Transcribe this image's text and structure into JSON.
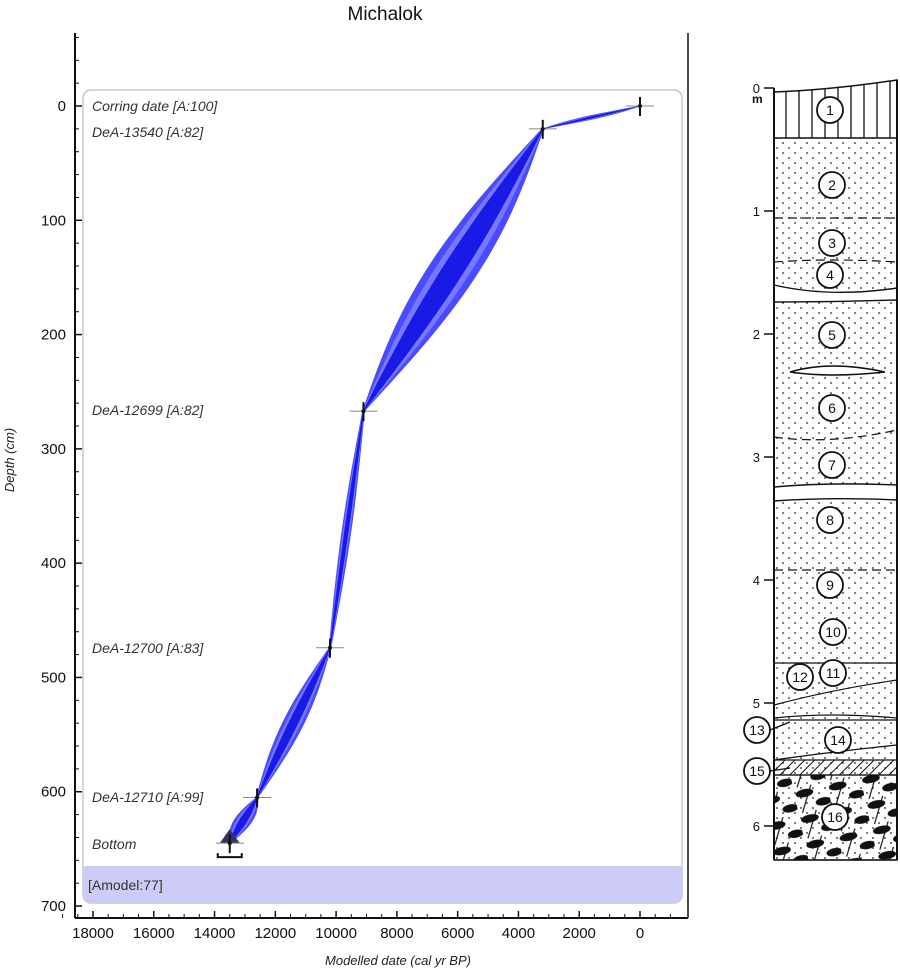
{
  "chart_data": {
    "type": "line",
    "title": "Michalok",
    "xlabel": "Modelled date (cal yr BP)",
    "ylabel": "Depth (cm)",
    "xlim": [
      19500,
      -1600
    ],
    "ylim": [
      700,
      -60
    ],
    "x_reversed": true,
    "y_reversed": true,
    "grid": false,
    "x_ticks": [
      "18000",
      "16000",
      "14000",
      "12000",
      "10000",
      "8000",
      "6000",
      "4000",
      "2000",
      "0"
    ],
    "y_ticks": [
      "0",
      "100",
      "200",
      "300",
      "400",
      "500",
      "600",
      "700"
    ],
    "band_color": "#1a1aff",
    "points": [
      {
        "label": "Corring date [A:100]",
        "age": 0,
        "depth": 0
      },
      {
        "label": "DeA-13540 [A:82]",
        "age": 3200,
        "depth": 20
      },
      {
        "label": "DeA-12699 [A:82]",
        "age": 9100,
        "depth": 267
      },
      {
        "label": "DeA-12700 [A:83]",
        "age": 10200,
        "depth": 474
      },
      {
        "label": "DeA-12710 [A:99]",
        "age": 12600,
        "depth": 605
      },
      {
        "label": "Bottom",
        "age": 13500,
        "depth": 645
      }
    ],
    "envelope_halfwidth_yr": [
      300,
      850,
      120,
      330,
      280
    ],
    "model_agreement": "[Amodel:77]"
  },
  "stratigraphy": {
    "scale_labels": [
      "0",
      "1",
      "2",
      "3",
      "4",
      "5",
      "6"
    ],
    "unit": "m",
    "layers": [
      "1",
      "2",
      "3",
      "4",
      "5",
      "6",
      "7",
      "8",
      "9",
      "10",
      "11",
      "12",
      "13",
      "14",
      "15",
      "16"
    ]
  }
}
